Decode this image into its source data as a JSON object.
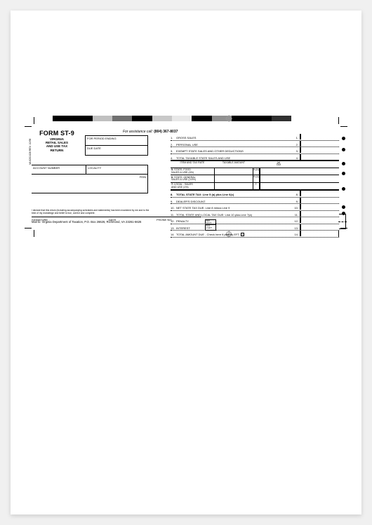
{
  "colorbar": [
    "#000000",
    "#000000",
    "#c0c0c0",
    "#707070",
    "#000000",
    "#c8c8c8",
    "#e8e8e8",
    "#000000",
    "#909090",
    "#000000",
    "#000000",
    "#303030"
  ],
  "reg_positions": [
    [
      310,
      150
    ],
    [
      310,
      315
    ]
  ],
  "title": {
    "form": "FORM ST-9",
    "sub": "VIRGINIA\nRETAIL SALES\nAND USE TAX\nRETURN"
  },
  "assist": {
    "label": "For assistance call:",
    "phone": "(804) 367-8037"
  },
  "period": {
    "line1": "FOR PERIOD ENDING",
    "line2": "DUE DATE"
  },
  "acct": {
    "c1": "ACCOUNT NUMBER",
    "c2": "LOCALITY",
    "fein": "FEIN"
  },
  "declare": "I declare that this return (including accompanying schedules and statements) has been examined by me and to the best of my knowledge and belief is true, correct and complete.",
  "sig": {
    "s1": "SIGNATURE",
    "s2": "DATE",
    "s3": "PHONE NO."
  },
  "mailto": "Mail to: Virginia Department of Taxation, P.O. Box 26626, Richmond, VA 23261-6626",
  "vert_code": "VA 6201028 REV. 10/98",
  "small_band": {
    "a": "TAX ACCT",
    "b": "from",
    "c": "of EFT"
  },
  "hdr": {
    "h1": "ITEM AND TAX RATE",
    "h2": "TAXABLE AMOUNT",
    "h4a": "(a)",
    "h4b": "TAX"
  },
  "lines_top": [
    {
      "n": "1.",
      "lbl": "GROSS SALES",
      "r": "1."
    },
    {
      "n": "2.",
      "lbl": "PERSONAL USE",
      "r": "2."
    },
    {
      "n": "3.",
      "lbl": "EXEMPT STATE SALES AND OTHER DEDUCTIONS",
      "r": "3."
    },
    {
      "n": "4.",
      "lbl": "TOTAL TAXABLE STATE SALES AND USE",
      "r": "4."
    }
  ],
  "grid": [
    {
      "n": "5.",
      "lbl": "STATE- FOOD\nSALES & USE (4%)",
      "r": "5.(b)"
    },
    {
      "n": "6.",
      "lbl": "STATE- GENERAL\nSALES & USE (3.5%)",
      "r": "6.(c)"
    },
    {
      "n": "7.",
      "lbl": "LOCAL - SALES\nAND USE (1%)",
      "r": "7."
    }
  ],
  "lines_bottom": [
    {
      "n": "8.",
      "lbl": "TOTAL STATE TAX: Line 5 (a) plus Line 6(c)",
      "r": "8.",
      "bold": true
    },
    {
      "n": "9.",
      "lbl": "DEALER'S DISCOUNT",
      "r": "9."
    },
    {
      "n": "10.",
      "lbl": "NET STATE TAX DUE: Line 8 minus Line 9",
      "r": "10."
    },
    {
      "n": "11.",
      "lbl": "TOTAL STATE AND LOCAL TAX DUE: Line 10 plus Line 7(a)",
      "r": "11."
    },
    {
      "n": "12.",
      "lbl": "PENALTY",
      "r": "12."
    },
    {
      "n": "13.",
      "lbl": "INTEREST",
      "r": "13."
    },
    {
      "n": "14.",
      "lbl": "TOTAL AMOUNT DUE - Check here if paid by EFT",
      "r": "14.",
      "eft": true
    }
  ],
  "bullets_y": [
    20,
    36,
    56,
    70,
    92,
    118,
    127
  ]
}
